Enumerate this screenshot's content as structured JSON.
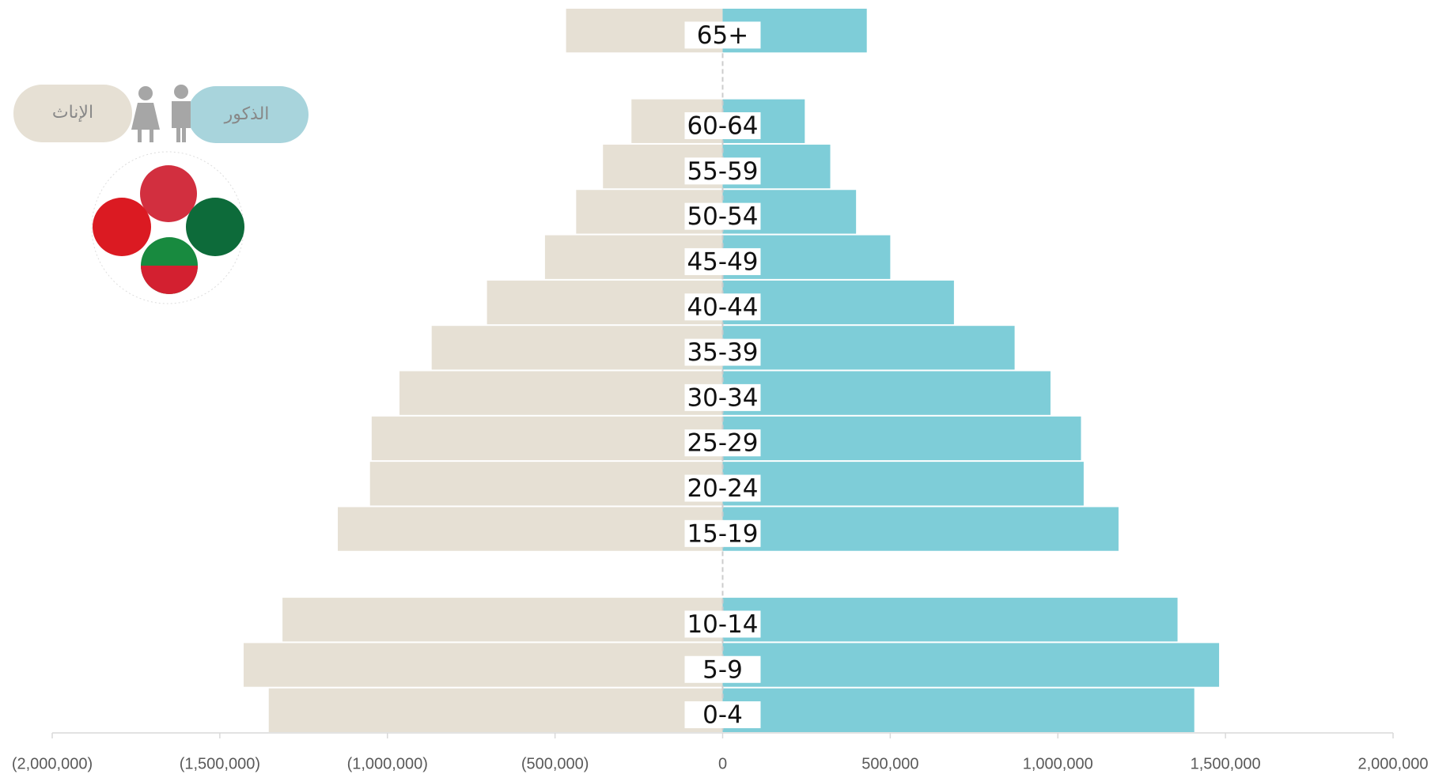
{
  "chart_data": {
    "type": "pyramid",
    "categories": [
      "65+",
      null,
      "60-64",
      "55-59",
      "50-54",
      "45-49",
      "40-44",
      "35-39",
      "30-34",
      "25-29",
      "20-24",
      "15-19",
      null,
      "10-14",
      "5-9",
      "0-4"
    ],
    "series": [
      {
        "name": "الإناث",
        "color": "#e6e0d4",
        "values": [
          -467000,
          null,
          -272000,
          -357000,
          -437000,
          -530000,
          -703000,
          -868000,
          -964000,
          -1047000,
          -1052000,
          -1148000,
          null,
          -1313000,
          -1429000,
          -1354000
        ]
      },
      {
        "name": "الذكور",
        "color": "#7ecdd8",
        "values": [
          430000,
          null,
          245000,
          321000,
          398000,
          500000,
          690000,
          871000,
          978000,
          1069000,
          1077000,
          1181000,
          null,
          1357000,
          1481000,
          1407000
        ]
      }
    ],
    "xlim": [
      -2000000,
      2000000
    ],
    "xticks": [
      {
        "value": -2000000,
        "label": "(2,000,000)"
      },
      {
        "value": -1500000,
        "label": "(1,500,000)"
      },
      {
        "value": -1000000,
        "label": "(1,000,000)"
      },
      {
        "value": -500000,
        "label": "(500,000)"
      },
      0,
      {
        "value": 500000,
        "label": "500,000"
      },
      {
        "value": 1000000,
        "label": "1,000,000"
      },
      {
        "value": 1500000,
        "label": "1,500,000"
      },
      {
        "value": 2000000,
        "label": "2,000,000"
      }
    ]
  }
}
